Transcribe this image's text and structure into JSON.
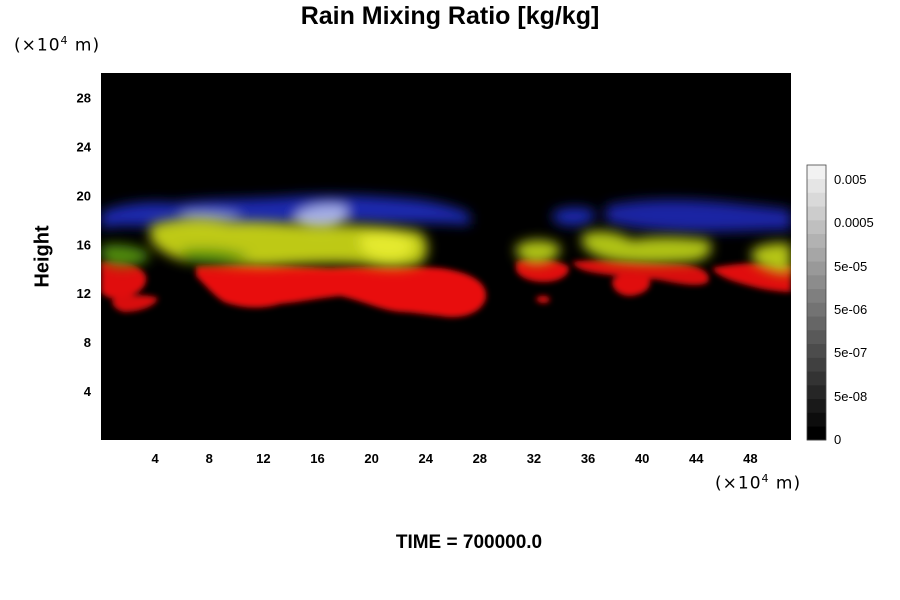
{
  "title": "Rain Mixing Ratio [kg/kg]",
  "y_unit": {
    "prefix": "(×10",
    "exp": "4",
    "suffix": " m)"
  },
  "x_unit": {
    "prefix": "(×10",
    "exp": "4",
    "suffix": " m)"
  },
  "ylabel": "Height",
  "time_label": "TIME = 700000.0",
  "chart_data": {
    "type": "heatmap",
    "title": "Rain Mixing Ratio [kg/kg]",
    "xlabel": "",
    "ylabel": "Height",
    "x_ticks": [
      "4",
      "8",
      "12",
      "16",
      "20",
      "24",
      "28",
      "32",
      "36",
      "40",
      "44",
      "48"
    ],
    "x_tick_values": [
      4,
      8,
      12,
      16,
      20,
      24,
      28,
      32,
      36,
      40,
      44,
      48
    ],
    "y_ticks": [
      "4",
      "8",
      "12",
      "16",
      "20",
      "24",
      "28"
    ],
    "y_tick_values": [
      4,
      8,
      12,
      16,
      20,
      24,
      28
    ],
    "xlim": [
      0,
      51
    ],
    "ylim": [
      0,
      30
    ],
    "background_color": "#000000",
    "colorbar": {
      "labels": [
        "0.005",
        "0.0005",
        "5e-05",
        "5e-06",
        "5e-07",
        "5e-08",
        "0"
      ],
      "label_values": [
        0.005,
        0.0005,
        5e-05,
        5e-06,
        5e-07,
        5e-08,
        0
      ],
      "levels": 20,
      "color_min": "#000000",
      "color_max": "#f2f2f2"
    },
    "colors": {
      "blue": "#2030c8",
      "lightblue": "#b0b8e8",
      "yellow": "#d8e020",
      "green": "#4a8a10",
      "red": "#e81010"
    },
    "regions": [
      {
        "color": "blue",
        "x": [
          0,
          30
        ],
        "y": [
          17,
          20
        ]
      },
      {
        "color": "lightblue",
        "x": [
          15,
          20
        ],
        "y": [
          16.5,
          19
        ]
      },
      {
        "color": "yellow",
        "x": [
          0,
          26
        ],
        "y": [
          14,
          18
        ]
      },
      {
        "color": "red",
        "x": [
          0,
          28
        ],
        "y": [
          10,
          14.5
        ]
      },
      {
        "color": "blue",
        "x": [
          33,
          51
        ],
        "y": [
          17,
          20
        ]
      },
      {
        "color": "yellow",
        "x": [
          31,
          51
        ],
        "y": [
          13.5,
          17
        ]
      },
      {
        "color": "red",
        "x": [
          31,
          51
        ],
        "y": [
          11,
          14.5
        ]
      }
    ]
  }
}
